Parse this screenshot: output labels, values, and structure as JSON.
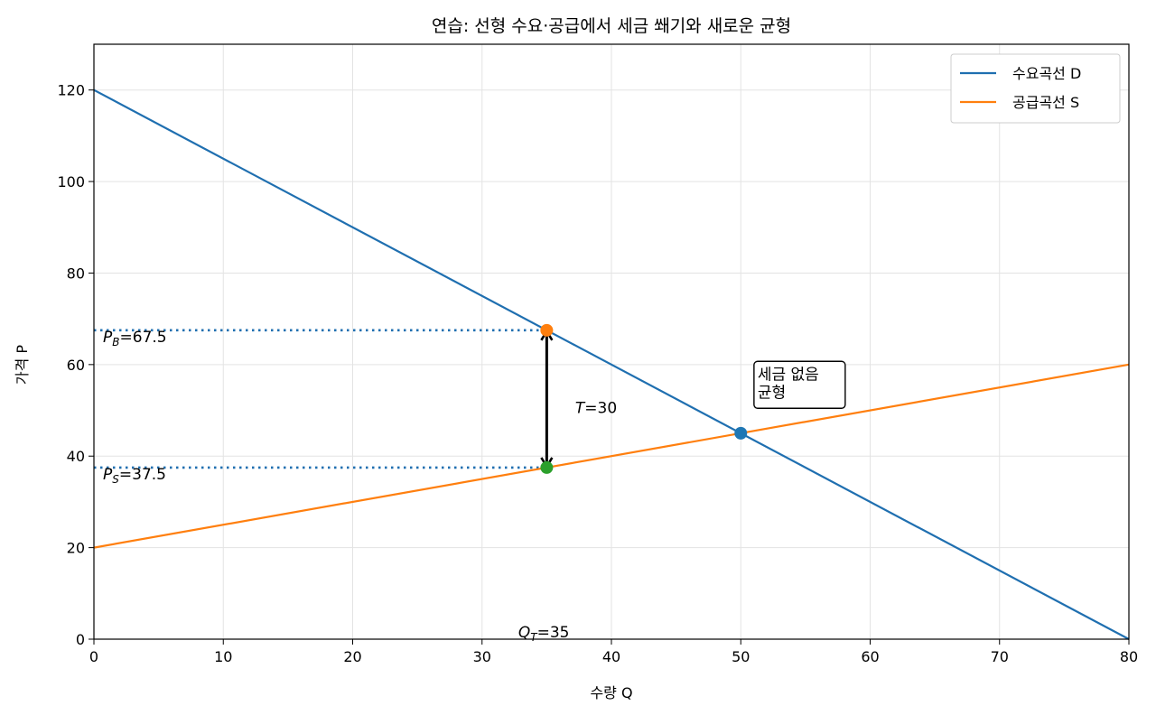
{
  "chart_data": {
    "type": "line",
    "title": "연습: 선형 수요·공급에서 세금 쐐기와 새로운 균형",
    "xlabel": "수량 Q",
    "ylabel": "가격 P",
    "xlim": [
      0,
      80
    ],
    "ylim": [
      0,
      130
    ],
    "xticks": [
      0,
      10,
      20,
      30,
      40,
      50,
      60,
      70,
      80
    ],
    "yticks": [
      0,
      20,
      40,
      60,
      80,
      100,
      120
    ],
    "grid": true,
    "legend_position": "top-right",
    "series": [
      {
        "name": "수요곡선 D",
        "color": "#1f6fb0",
        "x": [
          0,
          80
        ],
        "y": [
          120,
          0
        ]
      },
      {
        "name": "공급곡선 S",
        "color": "#ff7f0e",
        "x": [
          0,
          80
        ],
        "y": [
          20,
          60
        ]
      }
    ],
    "points": [
      {
        "x": 50,
        "y": 45,
        "color": "#1f77b4"
      },
      {
        "x": 35,
        "y": 67.5,
        "color": "#ff7f0e"
      },
      {
        "x": 35,
        "y": 37.5,
        "color": "#2ca02c"
      }
    ],
    "guides": [
      {
        "y": 67.5,
        "x_from": 0,
        "x_to": 35,
        "color": "#1f6fb0"
      },
      {
        "y": 37.5,
        "x_from": 0,
        "x_to": 35,
        "color": "#1f6fb0"
      }
    ],
    "tax_arrow": {
      "x": 35,
      "y_from": 37.5,
      "y_to": 67.5
    },
    "annotations": {
      "pb": {
        "var": "P",
        "sub": "B",
        "rest": "=67.5",
        "x": 0.7,
        "y": 67.5
      },
      "ps": {
        "var": "P",
        "sub": "S",
        "rest": "=37.5",
        "x": 0.7,
        "y": 37.5
      },
      "tax": {
        "var": "T",
        "rest": "=30",
        "x": 37.2,
        "y": 52
      },
      "qt": {
        "var": "Q",
        "sub": "T",
        "rest": "=35",
        "x": 32.8,
        "y": 3
      },
      "no_tax_box": {
        "lines": [
          "세금 없음",
          "균형"
        ],
        "x": 51.3,
        "y": 54
      }
    }
  }
}
